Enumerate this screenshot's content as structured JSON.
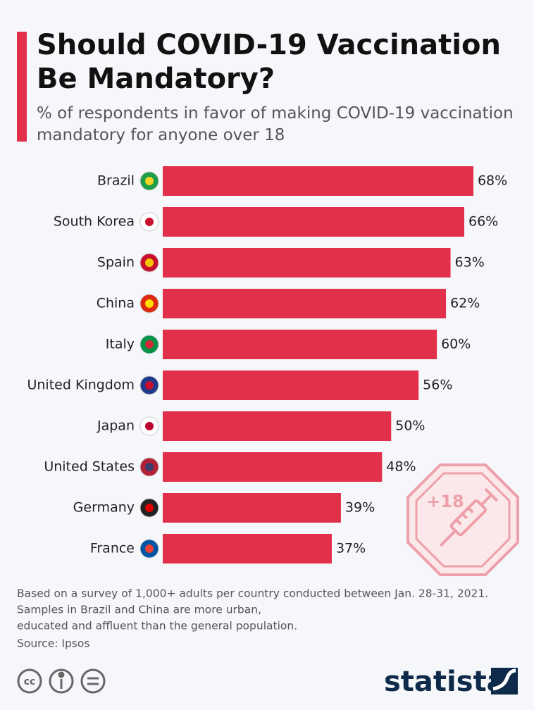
{
  "chart_data": {
    "type": "bar",
    "orientation": "horizontal",
    "title": "Should COVID-19 Vaccination Be Mandatory?",
    "subtitle": "% of respondents in favor of making COVID-19 vaccination mandatory for anyone over 18",
    "categories": [
      "Brazil",
      "South Korea",
      "Spain",
      "China",
      "Italy",
      "United Kingdom",
      "Japan",
      "United States",
      "Germany",
      "France"
    ],
    "values": [
      68,
      66,
      63,
      62,
      60,
      56,
      50,
      48,
      39,
      37
    ],
    "value_labels": [
      "68%",
      "66%",
      "63%",
      "62%",
      "60%",
      "56%",
      "50%",
      "48%",
      "39%",
      "37%"
    ],
    "color": "#e3304a",
    "badge": "+18",
    "notes": [
      "Based on a survey of 1,000+ adults per country conducted between Jan. 28-31, 2021.",
      "Samples in Brazil and China are more urban,",
      "educated and affluent than the general population."
    ],
    "source": "Source: Ipsos",
    "license": "cc",
    "brand": "statista"
  }
}
